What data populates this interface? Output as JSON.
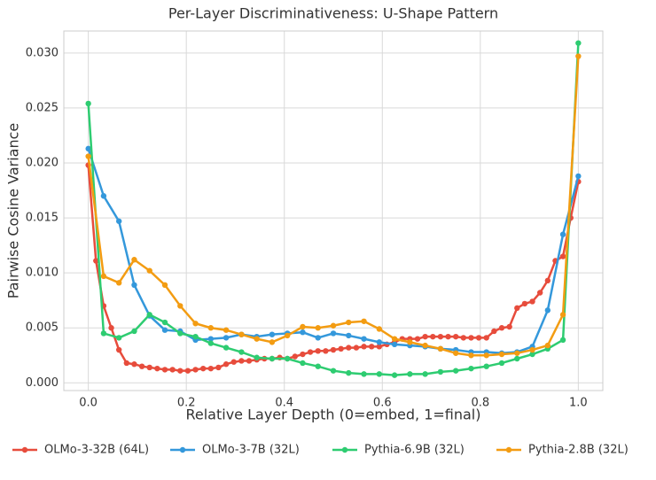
{
  "chart_data": {
    "type": "line",
    "title": "Per-Layer Discriminativeness: U-Shape Pattern",
    "xlabel": "Relative Layer Depth (0=embed, 1=final)",
    "ylabel": "Pairwise Cosine Variance",
    "xlim": [
      -0.05,
      1.05
    ],
    "ylim": [
      -0.0007,
      0.032
    ],
    "xticks": [
      {
        "value": 0,
        "label": "0.0"
      },
      0.2,
      0.4,
      0.6,
      0.8,
      {
        "value": 1,
        "label": "1.0"
      }
    ],
    "yticks": [
      {
        "value": 0,
        "label": "0.000"
      },
      {
        "value": 0.005,
        "label": "0.005"
      },
      {
        "value": 0.01,
        "label": "0.010"
      },
      {
        "value": 0.015,
        "label": "0.015"
      },
      {
        "value": 0.02,
        "label": "0.020"
      },
      {
        "value": 0.025,
        "label": "0.025"
      },
      {
        "value": 0.03,
        "label": "0.030"
      }
    ],
    "grid": true,
    "legend": "bottom",
    "series": [
      {
        "name": "OLMo-3-32B (64L)",
        "color": "#e74c3c",
        "x": [
          0,
          0.015625,
          0.03125,
          0.046875,
          0.0625,
          0.078125,
          0.09375,
          0.109375,
          0.125,
          0.140625,
          0.15625,
          0.171875,
          0.1875,
          0.203125,
          0.21875,
          0.234375,
          0.25,
          0.265625,
          0.28125,
          0.296875,
          0.3125,
          0.328125,
          0.34375,
          0.359375,
          0.375,
          0.390625,
          0.40625,
          0.421875,
          0.4375,
          0.453125,
          0.46875,
          0.484375,
          0.5,
          0.515625,
          0.53125,
          0.546875,
          0.5625,
          0.578125,
          0.59375,
          0.609375,
          0.625,
          0.640625,
          0.65625,
          0.671875,
          0.6875,
          0.703125,
          0.71875,
          0.734375,
          0.75,
          0.765625,
          0.78125,
          0.796875,
          0.8125,
          0.828125,
          0.84375,
          0.859375,
          0.875,
          0.890625,
          0.90625,
          0.921875,
          0.9375,
          0.953125,
          0.96875,
          0.984375,
          1
        ],
        "values": [
          0.0198,
          0.0111,
          0.007,
          0.005,
          0.003,
          0.0018,
          0.0017,
          0.0015,
          0.0014,
          0.0013,
          0.0012,
          0.0012,
          0.0011,
          0.0011,
          0.0012,
          0.0013,
          0.0013,
          0.0014,
          0.0017,
          0.0019,
          0.002,
          0.002,
          0.0021,
          0.0022,
          0.0022,
          0.0023,
          0.0022,
          0.0024,
          0.0026,
          0.0028,
          0.0029,
          0.0029,
          0.003,
          0.0031,
          0.0032,
          0.0032,
          0.0033,
          0.0033,
          0.0033,
          0.0035,
          0.0037,
          0.004,
          0.004,
          0.004,
          0.0042,
          0.0042,
          0.0042,
          0.0042,
          0.0042,
          0.0041,
          0.0041,
          0.0041,
          0.0041,
          0.0047,
          0.005,
          0.0051,
          0.0068,
          0.0072,
          0.0074,
          0.0082,
          0.0093,
          0.0111,
          0.0115,
          0.015,
          0.0183
        ]
      },
      {
        "name": "OLMo-3-7B (32L)",
        "color": "#3498db",
        "x": [
          0,
          0.03125,
          0.0625,
          0.09375,
          0.125,
          0.15625,
          0.1875,
          0.21875,
          0.25,
          0.28125,
          0.3125,
          0.34375,
          0.375,
          0.40625,
          0.4375,
          0.46875,
          0.5,
          0.53125,
          0.5625,
          0.59375,
          0.625,
          0.65625,
          0.6875,
          0.71875,
          0.75,
          0.78125,
          0.8125,
          0.84375,
          0.875,
          0.90625,
          0.9375,
          0.96875,
          1
        ],
        "values": [
          0.0213,
          0.017,
          0.0147,
          0.0089,
          0.0061,
          0.0048,
          0.0047,
          0.0039,
          0.004,
          0.0041,
          0.0044,
          0.0042,
          0.0044,
          0.0045,
          0.0046,
          0.0041,
          0.0045,
          0.0043,
          0.004,
          0.0037,
          0.0035,
          0.0034,
          0.0033,
          0.0031,
          0.003,
          0.0028,
          0.0028,
          0.0027,
          0.0028,
          0.0033,
          0.0066,
          0.0135,
          0.0188
        ]
      },
      {
        "name": "Pythia-6.9B (32L)",
        "color": "#2ecc71",
        "x": [
          0,
          0.03125,
          0.0625,
          0.09375,
          0.125,
          0.15625,
          0.1875,
          0.21875,
          0.25,
          0.28125,
          0.3125,
          0.34375,
          0.375,
          0.40625,
          0.4375,
          0.46875,
          0.5,
          0.53125,
          0.5625,
          0.59375,
          0.625,
          0.65625,
          0.6875,
          0.71875,
          0.75,
          0.78125,
          0.8125,
          0.84375,
          0.875,
          0.90625,
          0.9375,
          0.96875,
          1
        ],
        "values": [
          0.0254,
          0.0045,
          0.0041,
          0.0047,
          0.0062,
          0.0055,
          0.0045,
          0.0042,
          0.0036,
          0.0032,
          0.0028,
          0.0023,
          0.0022,
          0.0022,
          0.0018,
          0.0015,
          0.0011,
          0.0009,
          0.0008,
          0.0008,
          0.0007,
          0.0008,
          0.0008,
          0.001,
          0.0011,
          0.0013,
          0.0015,
          0.0018,
          0.0022,
          0.0026,
          0.0031,
          0.0039,
          0.0309
        ]
      },
      {
        "name": "Pythia-2.8B (32L)",
        "color": "#f39c12",
        "x": [
          0,
          0.03125,
          0.0625,
          0.09375,
          0.125,
          0.15625,
          0.1875,
          0.21875,
          0.25,
          0.28125,
          0.3125,
          0.34375,
          0.375,
          0.40625,
          0.4375,
          0.46875,
          0.5,
          0.53125,
          0.5625,
          0.59375,
          0.625,
          0.65625,
          0.6875,
          0.71875,
          0.75,
          0.78125,
          0.8125,
          0.84375,
          0.875,
          0.90625,
          0.9375,
          0.96875,
          1
        ],
        "values": [
          0.0206,
          0.0097,
          0.0091,
          0.0112,
          0.0102,
          0.0089,
          0.007,
          0.0054,
          0.005,
          0.0048,
          0.0044,
          0.004,
          0.0037,
          0.0043,
          0.0051,
          0.005,
          0.0052,
          0.0055,
          0.0056,
          0.0049,
          0.004,
          0.0037,
          0.0034,
          0.0031,
          0.0027,
          0.0025,
          0.0025,
          0.0026,
          0.0027,
          0.003,
          0.0034,
          0.0062,
          0.0297
        ]
      }
    ]
  }
}
